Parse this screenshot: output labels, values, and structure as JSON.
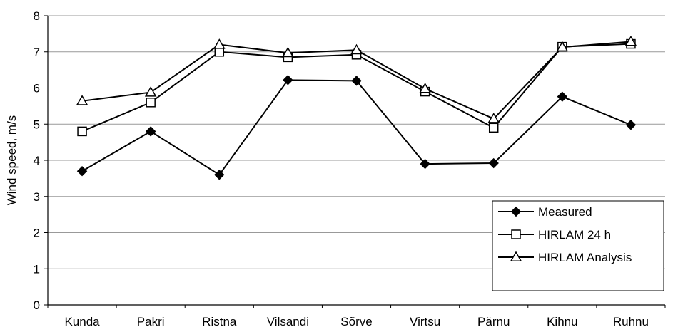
{
  "chart_data": {
    "type": "line",
    "ylabel": "Wind speed, m/s",
    "xlabel": "",
    "categories": [
      "Kunda",
      "Pakri",
      "Ristna",
      "Vilsandi",
      "Sõrve",
      "Virtsu",
      "Pärnu",
      "Kihnu",
      "Ruhnu"
    ],
    "ylim": [
      0,
      8
    ],
    "yticks": [
      "0",
      "1",
      "2",
      "3",
      "4",
      "5",
      "6",
      "7",
      "8"
    ],
    "grid": "horizontal",
    "legend_position": "bottom-right",
    "series": [
      {
        "name": "Measured",
        "marker": "diamond",
        "values": [
          3.7,
          4.8,
          3.6,
          6.22,
          6.2,
          3.9,
          3.92,
          5.76,
          4.98
        ]
      },
      {
        "name": "HIRLAM 24 h",
        "marker": "square",
        "values": [
          4.8,
          5.6,
          7.0,
          6.85,
          6.92,
          5.9,
          4.9,
          7.14,
          7.22
        ]
      },
      {
        "name": "HIRLAM Analysis",
        "marker": "triangle",
        "values": [
          5.64,
          5.88,
          7.2,
          6.97,
          7.05,
          5.98,
          5.15,
          7.13,
          7.28
        ]
      }
    ],
    "colors": {
      "line": "#000000",
      "grid": "#999999",
      "background": "#ffffff"
    }
  }
}
